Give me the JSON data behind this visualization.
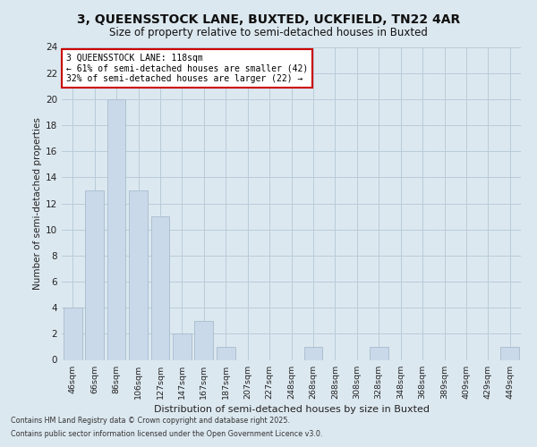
{
  "title1": "3, QUEENSSTOCK LANE, BUXTED, UCKFIELD, TN22 4AR",
  "title2": "Size of property relative to semi-detached houses in Buxted",
  "xlabel": "Distribution of semi-detached houses by size in Buxted",
  "ylabel": "Number of semi-detached properties",
  "categories": [
    "46sqm",
    "66sqm",
    "86sqm",
    "106sqm",
    "127sqm",
    "147sqm",
    "167sqm",
    "187sqm",
    "207sqm",
    "227sqm",
    "248sqm",
    "268sqm",
    "288sqm",
    "308sqm",
    "328sqm",
    "348sqm",
    "368sqm",
    "389sqm",
    "409sqm",
    "429sqm",
    "449sqm"
  ],
  "values": [
    4,
    13,
    20,
    13,
    11,
    2,
    3,
    1,
    0,
    0,
    0,
    1,
    0,
    0,
    1,
    0,
    0,
    0,
    0,
    0,
    1
  ],
  "bar_color": "#c9d9e9",
  "bar_edge_color": "#a8bccc",
  "annotation_text": "3 QUEENSSTOCK LANE: 118sqm\n← 61% of semi-detached houses are smaller (42)\n32% of semi-detached houses are larger (22) →",
  "annotation_box_color": "#ffffff",
  "annotation_border_color": "#cc0000",
  "footnote1": "Contains HM Land Registry data © Crown copyright and database right 2025.",
  "footnote2": "Contains public sector information licensed under the Open Government Licence v3.0.",
  "bg_color": "#dce8f0",
  "plot_bg_color": "#dce8f0",
  "grid_color": "#b8ccd8",
  "ylim": [
    0,
    24
  ],
  "yticks": [
    0,
    2,
    4,
    6,
    8,
    10,
    12,
    14,
    16,
    18,
    20,
    22,
    24
  ]
}
